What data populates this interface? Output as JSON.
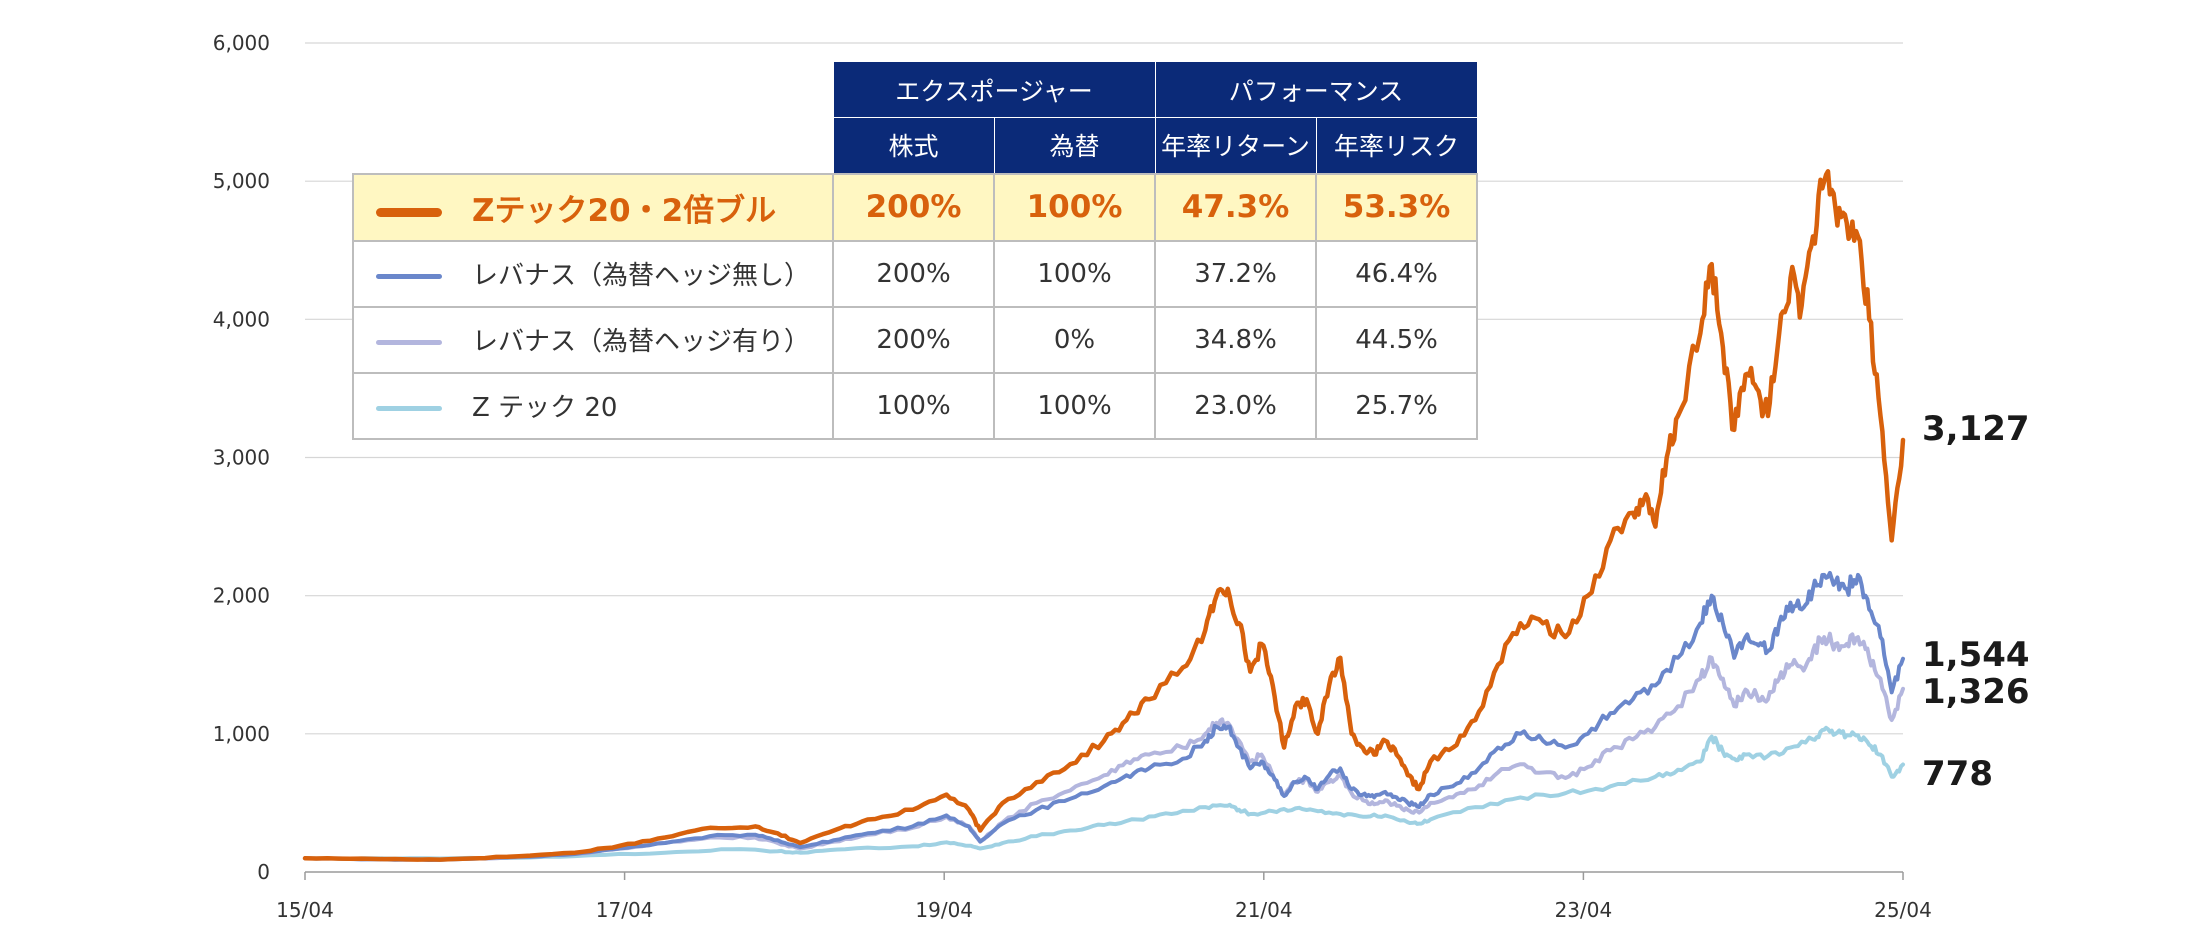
{
  "chart_data": {
    "type": "line",
    "ylim": [
      0,
      6000
    ],
    "y_ticks": [
      "0",
      "1,000",
      "2,000",
      "3,000",
      "4,000",
      "5,000",
      "6,000"
    ],
    "x_ticks": [
      "15/04",
      "17/04",
      "19/04",
      "21/04",
      "23/04",
      "25/04"
    ],
    "grid": "horizontal",
    "series": [
      {
        "name": "Zテック20・2倍ブル",
        "color": "#d8610c",
        "end_label": "3,127",
        "points": [
          [
            0,
            100
          ],
          [
            6,
            95
          ],
          [
            12,
            90
          ],
          [
            18,
            110
          ],
          [
            24,
            140
          ],
          [
            28,
            190
          ],
          [
            32,
            250
          ],
          [
            36,
            320
          ],
          [
            40,
            330
          ],
          [
            42,
            280
          ],
          [
            44,
            210
          ],
          [
            47,
            300
          ],
          [
            50,
            380
          ],
          [
            54,
            450
          ],
          [
            57,
            560
          ],
          [
            59,
            450
          ],
          [
            60,
            300
          ],
          [
            62,
            500
          ],
          [
            65,
            650
          ],
          [
            68,
            780
          ],
          [
            71,
            950
          ],
          [
            73,
            1100
          ],
          [
            75,
            1250
          ],
          [
            78,
            1480
          ],
          [
            80,
            1750
          ],
          [
            81,
            2000
          ],
          [
            82,
            2050
          ],
          [
            83,
            1800
          ],
          [
            84,
            1450
          ],
          [
            85,
            1650
          ],
          [
            86,
            1350
          ],
          [
            87,
            900
          ],
          [
            88,
            1200
          ],
          [
            89,
            1250
          ],
          [
            90,
            1000
          ],
          [
            91,
            1350
          ],
          [
            92,
            1550
          ],
          [
            93,
            1000
          ],
          [
            94,
            900
          ],
          [
            95,
            850
          ],
          [
            96,
            950
          ],
          [
            97,
            850
          ],
          [
            98,
            700
          ],
          [
            99,
            600
          ],
          [
            100,
            800
          ],
          [
            102,
            900
          ],
          [
            104,
            1100
          ],
          [
            106,
            1500
          ],
          [
            108,
            1800
          ],
          [
            110,
            1800
          ],
          [
            112,
            1700
          ],
          [
            114,
            2000
          ],
          [
            116,
            2400
          ],
          [
            118,
            2600
          ],
          [
            119,
            2700
          ],
          [
            120,
            2500
          ],
          [
            121,
            3000
          ],
          [
            122,
            3300
          ],
          [
            124,
            3900
          ],
          [
            125,
            4400
          ],
          [
            126,
            3800
          ],
          [
            127,
            3200
          ],
          [
            128,
            3600
          ],
          [
            129,
            3500
          ],
          [
            130,
            3300
          ],
          [
            131,
            3900
          ],
          [
            132,
            4300
          ],
          [
            133,
            4100
          ],
          [
            134,
            4600
          ],
          [
            135,
            5000
          ],
          [
            136,
            4800
          ],
          [
            137,
            4700
          ],
          [
            138,
            4600
          ],
          [
            139,
            4000
          ],
          [
            140,
            3300
          ],
          [
            141,
            2400
          ],
          [
            142,
            3127
          ]
        ]
      },
      {
        "name": "レバナス（為替ヘッジ無し）",
        "color": "#6a87cb",
        "end_label": "1,544",
        "points": [
          [
            0,
            100
          ],
          [
            6,
            92
          ],
          [
            12,
            88
          ],
          [
            18,
            105
          ],
          [
            24,
            130
          ],
          [
            28,
            170
          ],
          [
            32,
            210
          ],
          [
            36,
            260
          ],
          [
            40,
            270
          ],
          [
            42,
            230
          ],
          [
            44,
            180
          ],
          [
            47,
            230
          ],
          [
            50,
            280
          ],
          [
            54,
            330
          ],
          [
            57,
            410
          ],
          [
            59,
            330
          ],
          [
            60,
            220
          ],
          [
            62,
            350
          ],
          [
            65,
            450
          ],
          [
            68,
            530
          ],
          [
            71,
            620
          ],
          [
            73,
            700
          ],
          [
            75,
            750
          ],
          [
            78,
            820
          ],
          [
            80,
            950
          ],
          [
            81,
            1050
          ],
          [
            82,
            1050
          ],
          [
            83,
            900
          ],
          [
            84,
            750
          ],
          [
            85,
            800
          ],
          [
            86,
            700
          ],
          [
            87,
            550
          ],
          [
            88,
            650
          ],
          [
            89,
            680
          ],
          [
            90,
            600
          ],
          [
            91,
            700
          ],
          [
            92,
            750
          ],
          [
            93,
            600
          ],
          [
            94,
            560
          ],
          [
            95,
            540
          ],
          [
            96,
            580
          ],
          [
            97,
            540
          ],
          [
            98,
            500
          ],
          [
            99,
            470
          ],
          [
            100,
            560
          ],
          [
            102,
            620
          ],
          [
            104,
            720
          ],
          [
            106,
            900
          ],
          [
            108,
            1000
          ],
          [
            110,
            950
          ],
          [
            112,
            900
          ],
          [
            114,
            1000
          ],
          [
            116,
            1150
          ],
          [
            118,
            1250
          ],
          [
            120,
            1350
          ],
          [
            122,
            1550
          ],
          [
            124,
            1800
          ],
          [
            125,
            2000
          ],
          [
            126,
            1800
          ],
          [
            127,
            1550
          ],
          [
            128,
            1700
          ],
          [
            129,
            1650
          ],
          [
            130,
            1600
          ],
          [
            131,
            1800
          ],
          [
            132,
            1950
          ],
          [
            133,
            1900
          ],
          [
            134,
            2050
          ],
          [
            135,
            2150
          ],
          [
            136,
            2100
          ],
          [
            137,
            2050
          ],
          [
            138,
            2150
          ],
          [
            139,
            1900
          ],
          [
            140,
            1700
          ],
          [
            141,
            1300
          ],
          [
            142,
            1544
          ]
        ]
      },
      {
        "name": "レバナス（為替ヘッジ有り）",
        "color": "#b3b6de",
        "end_label": "1,326",
        "points": [
          [
            0,
            100
          ],
          [
            6,
            92
          ],
          [
            12,
            88
          ],
          [
            18,
            105
          ],
          [
            24,
            130
          ],
          [
            28,
            170
          ],
          [
            32,
            210
          ],
          [
            36,
            250
          ],
          [
            40,
            250
          ],
          [
            42,
            210
          ],
          [
            44,
            170
          ],
          [
            47,
            220
          ],
          [
            50,
            270
          ],
          [
            54,
            320
          ],
          [
            57,
            400
          ],
          [
            59,
            330
          ],
          [
            60,
            220
          ],
          [
            62,
            360
          ],
          [
            65,
            500
          ],
          [
            68,
            590
          ],
          [
            71,
            700
          ],
          [
            73,
            800
          ],
          [
            75,
            850
          ],
          [
            78,
            900
          ],
          [
            80,
            1000
          ],
          [
            81,
            1080
          ],
          [
            82,
            1080
          ],
          [
            83,
            950
          ],
          [
            84,
            800
          ],
          [
            85,
            850
          ],
          [
            86,
            700
          ],
          [
            87,
            560
          ],
          [
            88,
            650
          ],
          [
            89,
            670
          ],
          [
            90,
            580
          ],
          [
            91,
            650
          ],
          [
            92,
            700
          ],
          [
            93,
            570
          ],
          [
            94,
            520
          ],
          [
            95,
            490
          ],
          [
            96,
            520
          ],
          [
            97,
            480
          ],
          [
            98,
            450
          ],
          [
            99,
            430
          ],
          [
            100,
            500
          ],
          [
            102,
            540
          ],
          [
            104,
            600
          ],
          [
            106,
            720
          ],
          [
            108,
            780
          ],
          [
            110,
            720
          ],
          [
            112,
            680
          ],
          [
            114,
            760
          ],
          [
            116,
            880
          ],
          [
            118,
            960
          ],
          [
            120,
            1050
          ],
          [
            122,
            1200
          ],
          [
            124,
            1400
          ],
          [
            125,
            1550
          ],
          [
            126,
            1400
          ],
          [
            127,
            1200
          ],
          [
            128,
            1320
          ],
          [
            129,
            1280
          ],
          [
            130,
            1250
          ],
          [
            131,
            1400
          ],
          [
            132,
            1500
          ],
          [
            133,
            1480
          ],
          [
            134,
            1600
          ],
          [
            135,
            1700
          ],
          [
            136,
            1650
          ],
          [
            137,
            1650
          ],
          [
            138,
            1700
          ],
          [
            139,
            1550
          ],
          [
            140,
            1400
          ],
          [
            141,
            1100
          ],
          [
            142,
            1326
          ]
        ]
      },
      {
        "name": "Z テック 20",
        "color": "#9fd1e3",
        "end_label": "778",
        "points": [
          [
            0,
            100
          ],
          [
            8,
            97
          ],
          [
            16,
            100
          ],
          [
            24,
            115
          ],
          [
            32,
            140
          ],
          [
            38,
            165
          ],
          [
            42,
            150
          ],
          [
            44,
            140
          ],
          [
            48,
            165
          ],
          [
            54,
            185
          ],
          [
            57,
            215
          ],
          [
            59,
            190
          ],
          [
            60,
            170
          ],
          [
            62,
            210
          ],
          [
            65,
            260
          ],
          [
            68,
            300
          ],
          [
            71,
            340
          ],
          [
            74,
            380
          ],
          [
            77,
            420
          ],
          [
            80,
            470
          ],
          [
            82,
            480
          ],
          [
            83,
            450
          ],
          [
            84,
            420
          ],
          [
            86,
            440
          ],
          [
            88,
            460
          ],
          [
            90,
            440
          ],
          [
            92,
            420
          ],
          [
            94,
            400
          ],
          [
            96,
            410
          ],
          [
            98,
            360
          ],
          [
            99,
            350
          ],
          [
            100,
            380
          ],
          [
            104,
            470
          ],
          [
            108,
            540
          ],
          [
            112,
            570
          ],
          [
            116,
            620
          ],
          [
            120,
            690
          ],
          [
            122,
            740
          ],
          [
            124,
            800
          ],
          [
            125,
            980
          ],
          [
            126,
            870
          ],
          [
            127,
            820
          ],
          [
            128,
            850
          ],
          [
            130,
            840
          ],
          [
            132,
            900
          ],
          [
            134,
            960
          ],
          [
            135,
            1030
          ],
          [
            136,
            1000
          ],
          [
            137,
            990
          ],
          [
            138,
            990
          ],
          [
            139,
            920
          ],
          [
            140,
            850
          ],
          [
            141,
            690
          ],
          [
            142,
            778
          ]
        ]
      }
    ]
  },
  "table": {
    "header_group": [
      "エクスポージャー",
      "パフォーマンス"
    ],
    "header_cols": [
      "株式",
      "為替",
      "年率リターン",
      "年率リスク"
    ],
    "rows": [
      {
        "name": "Zテック20・2倍ブル",
        "color": "#d8610c",
        "values": [
          "200%",
          "100%",
          "47.3%",
          "53.3%"
        ]
      },
      {
        "name": "レバナス（為替ヘッジ無し）",
        "color": "#6a87cb",
        "values": [
          "200%",
          "100%",
          "37.2%",
          "46.4%"
        ]
      },
      {
        "name": "レバナス（為替ヘッジ有り）",
        "color": "#b3b6de",
        "values": [
          "200%",
          "0%",
          "34.8%",
          "44.5%"
        ]
      },
      {
        "name": "Z テック 20",
        "color": "#9fd1e3",
        "values": [
          "100%",
          "100%",
          "23.0%",
          "25.7%"
        ]
      }
    ]
  }
}
